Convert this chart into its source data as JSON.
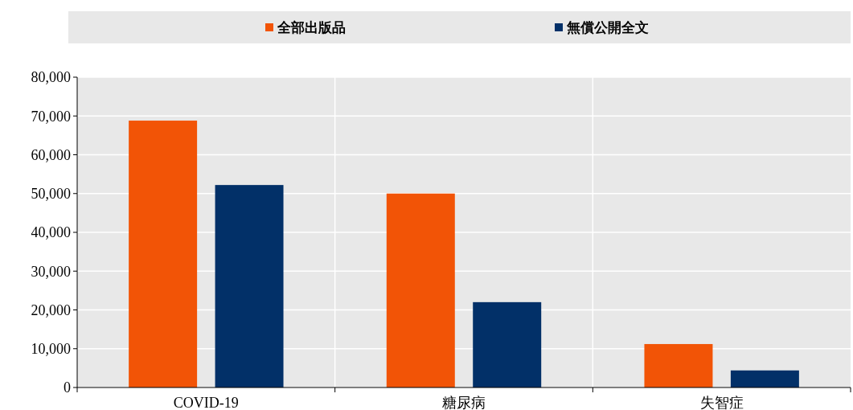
{
  "chart_data": {
    "type": "bar",
    "categories": [
      "COVID-19",
      "糖尿病",
      "失智症"
    ],
    "series": [
      {
        "name": "全部出版品",
        "color": "#f25406",
        "values": [
          68800,
          50000,
          11200
        ]
      },
      {
        "name": "無償公開全文",
        "color": "#023068",
        "values": [
          52200,
          22000,
          4400
        ]
      }
    ],
    "ylim": [
      0,
      80000
    ],
    "yticks": [
      {
        "value": 0,
        "label": "0"
      },
      {
        "value": 10000,
        "label": "10,000"
      },
      {
        "value": 20000,
        "label": "20,000"
      },
      {
        "value": 30000,
        "label": "30,000"
      },
      {
        "value": 40000,
        "label": "40,000"
      },
      {
        "value": 50000,
        "label": "50,000"
      },
      {
        "value": 60000,
        "label": "60,000"
      },
      {
        "value": 70000,
        "label": "70,000"
      },
      {
        "value": 80000,
        "label": "80,000"
      }
    ],
    "grid": true,
    "legend": "top"
  }
}
